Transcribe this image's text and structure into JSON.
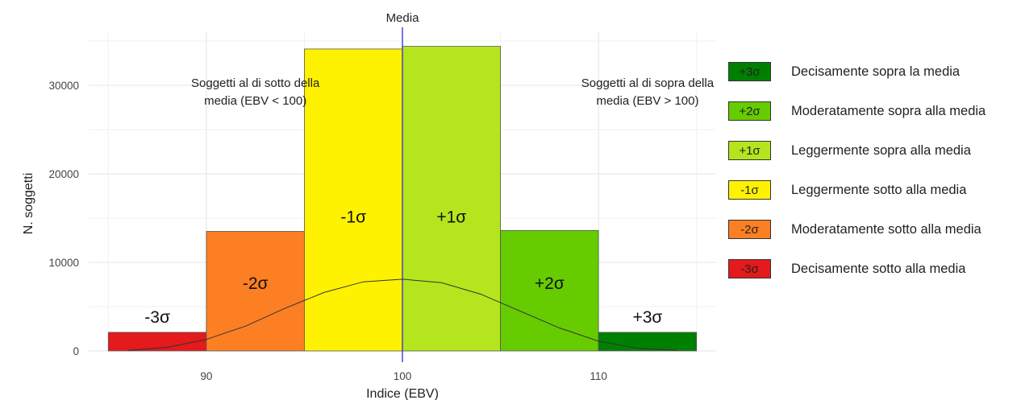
{
  "chart_data": {
    "type": "bar",
    "xlabel": "Indice (EBV)",
    "ylabel": "N. soggetti",
    "xlim": [
      84,
      116
    ],
    "ylim": [
      0,
      36000
    ],
    "x_ticks": [
      90,
      100,
      110
    ],
    "y_ticks": [
      0,
      10000,
      20000,
      30000
    ],
    "grid": true,
    "bars": [
      {
        "x0": 85,
        "x1": 90,
        "value": 2100,
        "label": "-3σ",
        "color": "#e41a1c"
      },
      {
        "x0": 90,
        "x1": 95,
        "value": 13500,
        "label": "-2σ",
        "color": "#fd7f23"
      },
      {
        "x0": 95,
        "x1": 100,
        "value": 34100,
        "label": "-1σ",
        "color": "#fff200"
      },
      {
        "x0": 100,
        "x1": 105,
        "value": 34400,
        "label": "+1σ",
        "color": "#b5e61d"
      },
      {
        "x0": 105,
        "x1": 110,
        "value": 13600,
        "label": "+2σ",
        "color": "#66cc00"
      },
      {
        "x0": 110,
        "x1": 115,
        "value": 2100,
        "label": "+3σ",
        "color": "#008000"
      }
    ],
    "density_curve": {
      "x": [
        86,
        88,
        90,
        92,
        94,
        96,
        98,
        100,
        102,
        104,
        106,
        108,
        110,
        112,
        114
      ],
      "y": [
        50,
        400,
        1300,
        2800,
        4800,
        6600,
        7800,
        8100,
        7700,
        6400,
        4500,
        2600,
        1100,
        300,
        50
      ]
    },
    "mean_line": {
      "x": 100,
      "label": "Media"
    },
    "annotations": [
      {
        "text": "Soggetti al di sotto della",
        "text2": "media (EBV < 100)",
        "x": 92.5,
        "y": 30000
      },
      {
        "text": "Soggetti al di sopra della",
        "text2": "media (EBV > 100)",
        "x": 112.5,
        "y": 30000
      }
    ],
    "legend": {
      "placement": "right",
      "items": [
        {
          "symbol": "+3σ",
          "label": "Decisamente sopra la media",
          "color": "#008000"
        },
        {
          "symbol": "+2σ",
          "label": "Moderatamente sopra alla media",
          "color": "#66cc00"
        },
        {
          "symbol": "+1σ",
          "label": "Leggermente sopra alla media",
          "color": "#b5e61d"
        },
        {
          "symbol": "-1σ",
          "label": "Leggermente sotto alla media",
          "color": "#fff200"
        },
        {
          "symbol": "-2σ",
          "label": "Moderatamente sotto alla media",
          "color": "#fd7f23"
        },
        {
          "symbol": "-3σ",
          "label": "Decisamente sotto alla media",
          "color": "#e41a1c"
        }
      ]
    }
  }
}
